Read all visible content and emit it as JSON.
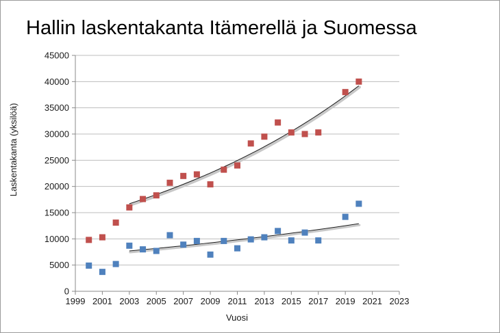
{
  "chart_data": {
    "type": "scatter",
    "title": "Hallin laskentakanta Itämerellä ja Suomessa",
    "xlabel": "Vuosi",
    "ylabel": "Laskentakanta (yksilöä)",
    "xlim": [
      1999,
      2023
    ],
    "ylim": [
      0,
      45000
    ],
    "x_ticks": [
      1999,
      2001,
      2003,
      2005,
      2007,
      2009,
      2011,
      2013,
      2015,
      2017,
      2019,
      2021,
      2023
    ],
    "y_ticks": [
      0,
      5000,
      10000,
      15000,
      20000,
      25000,
      30000,
      35000,
      40000,
      45000
    ],
    "grid": "horizontal",
    "legend": "none",
    "series": [
      {
        "color": "#c0504d",
        "marker": "square",
        "points": [
          [
            2000,
            9800
          ],
          [
            2001,
            10300
          ],
          [
            2002,
            13100
          ],
          [
            2003,
            16000
          ],
          [
            2004,
            17600
          ],
          [
            2005,
            18300
          ],
          [
            2006,
            20700
          ],
          [
            2007,
            22000
          ],
          [
            2008,
            22300
          ],
          [
            2009,
            20400
          ],
          [
            2010,
            23200
          ],
          [
            2011,
            24000
          ],
          [
            2012,
            28200
          ],
          [
            2013,
            29500
          ],
          [
            2014,
            32200
          ],
          [
            2015,
            30300
          ],
          [
            2016,
            30000
          ],
          [
            2017,
            30300
          ],
          [
            2019,
            38000
          ],
          [
            2020,
            40000
          ]
        ],
        "trendline": {
          "type": "exponential",
          "x_range": [
            2003,
            2020
          ],
          "y_start": 16700,
          "y_end": 39200
        }
      },
      {
        "color": "#4f81bd",
        "marker": "square",
        "points": [
          [
            2000,
            4900
          ],
          [
            2001,
            3700
          ],
          [
            2002,
            5200
          ],
          [
            2003,
            8700
          ],
          [
            2004,
            8000
          ],
          [
            2005,
            7700
          ],
          [
            2006,
            10700
          ],
          [
            2007,
            8900
          ],
          [
            2008,
            9600
          ],
          [
            2009,
            7000
          ],
          [
            2010,
            9600
          ],
          [
            2011,
            8200
          ],
          [
            2012,
            9900
          ],
          [
            2013,
            10300
          ],
          [
            2014,
            11500
          ],
          [
            2015,
            9700
          ],
          [
            2016,
            11200
          ],
          [
            2017,
            9700
          ],
          [
            2019,
            14200
          ],
          [
            2020,
            16700
          ]
        ],
        "trendline": {
          "type": "exponential",
          "x_range": [
            2003,
            2020
          ],
          "y_start": 7700,
          "y_end": 12900
        }
      }
    ]
  }
}
